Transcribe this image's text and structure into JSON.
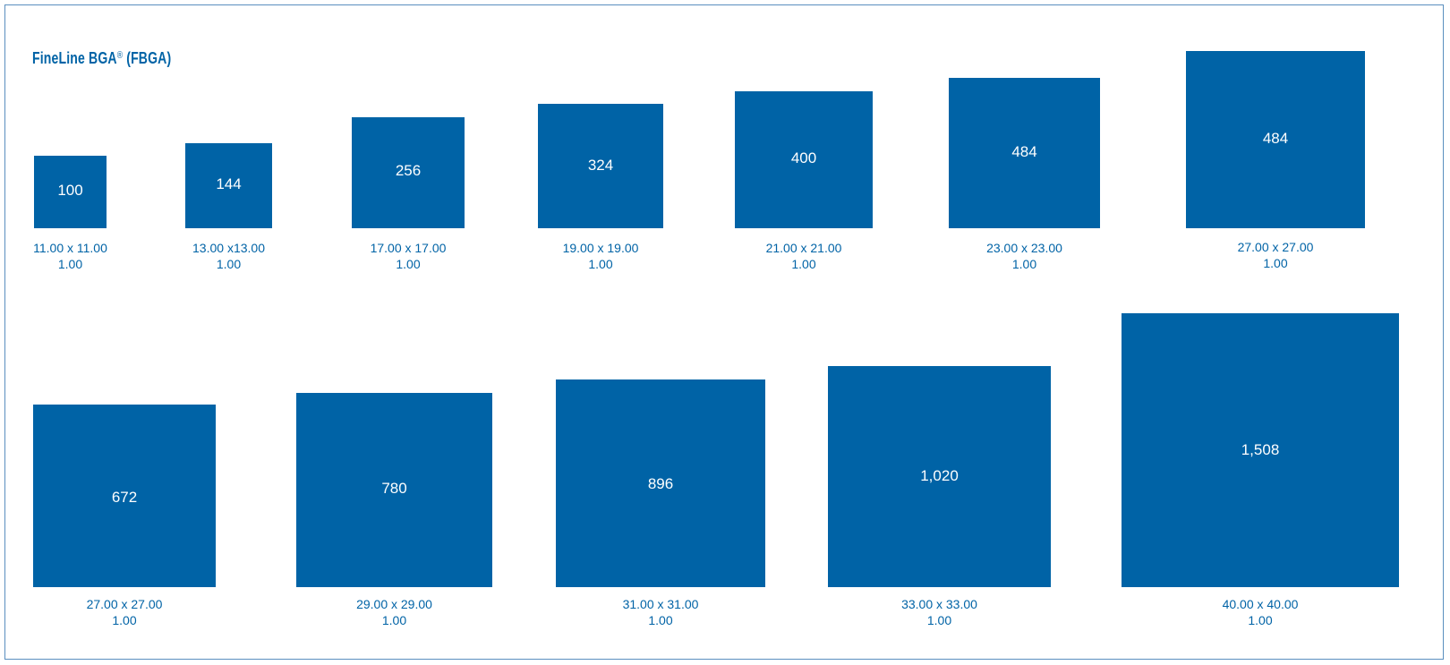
{
  "title": {
    "main": "FineLine BGA",
    "reg": "®",
    "suffix": " (FBGA)"
  },
  "packages": [
    {
      "count": "100",
      "size": "11.00 x 11.00",
      "pitch": "1.00"
    },
    {
      "count": "144",
      "size": "13.00 x13.00",
      "pitch": "1.00"
    },
    {
      "count": "256",
      "size": "17.00 x 17.00",
      "pitch": "1.00"
    },
    {
      "count": "324",
      "size": "19.00 x 19.00",
      "pitch": "1.00"
    },
    {
      "count": "400",
      "size": "21.00 x 21.00",
      "pitch": "1.00"
    },
    {
      "count": "484",
      "size": "23.00 x 23.00",
      "pitch": "1.00"
    },
    {
      "count": "484",
      "size": "27.00 x 27.00",
      "pitch": "1.00"
    },
    {
      "count": "672",
      "size": "27.00 x 27.00",
      "pitch": "1.00"
    },
    {
      "count": "780",
      "size": "29.00 x 29.00",
      "pitch": "1.00"
    },
    {
      "count": "896",
      "size": "31.00 x 31.00",
      "pitch": "1.00"
    },
    {
      "count": "1,020",
      "size": "33.00 x 33.00",
      "pitch": "1.00"
    },
    {
      "count": "1,508",
      "size": "40.00 x 40.00",
      "pitch": "1.00"
    }
  ],
  "colors": {
    "fill": "#0063a6",
    "text": "#0063a6",
    "border": "#5a8fbf"
  }
}
